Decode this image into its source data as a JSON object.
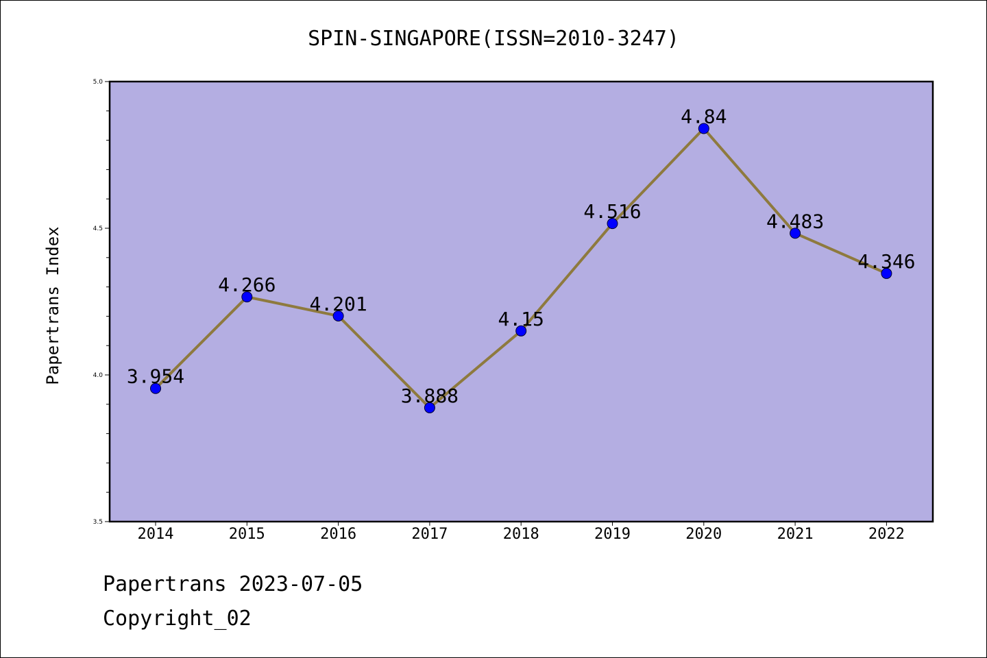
{
  "chart_data": {
    "type": "line",
    "title": "SPIN-SINGAPORE(ISSN=2010-3247)",
    "ylabel": "Papertrans Index",
    "xlabel": "",
    "categories": [
      "2014",
      "2015",
      "2016",
      "2017",
      "2018",
      "2019",
      "2020",
      "2021",
      "2022"
    ],
    "values": [
      3.954,
      4.266,
      4.201,
      3.888,
      4.15,
      4.516,
      4.84,
      4.483,
      4.346
    ],
    "data_labels": [
      "3.954",
      "4.266",
      "4.201",
      "3.888",
      "4.15",
      "4.516",
      "4.84",
      "4.483",
      "4.346"
    ],
    "ylim": [
      3.5,
      5.0
    ],
    "yticks": [
      "3.5",
      "4.0",
      "4.5",
      "5.0"
    ],
    "grid": false,
    "colors": {
      "plot_background": "#b4aee2",
      "line": "#8e7a3e",
      "marker": "#0000ff"
    }
  },
  "footer": {
    "line1": "Papertrans 2023-07-05",
    "line2": "Copyright_02"
  }
}
